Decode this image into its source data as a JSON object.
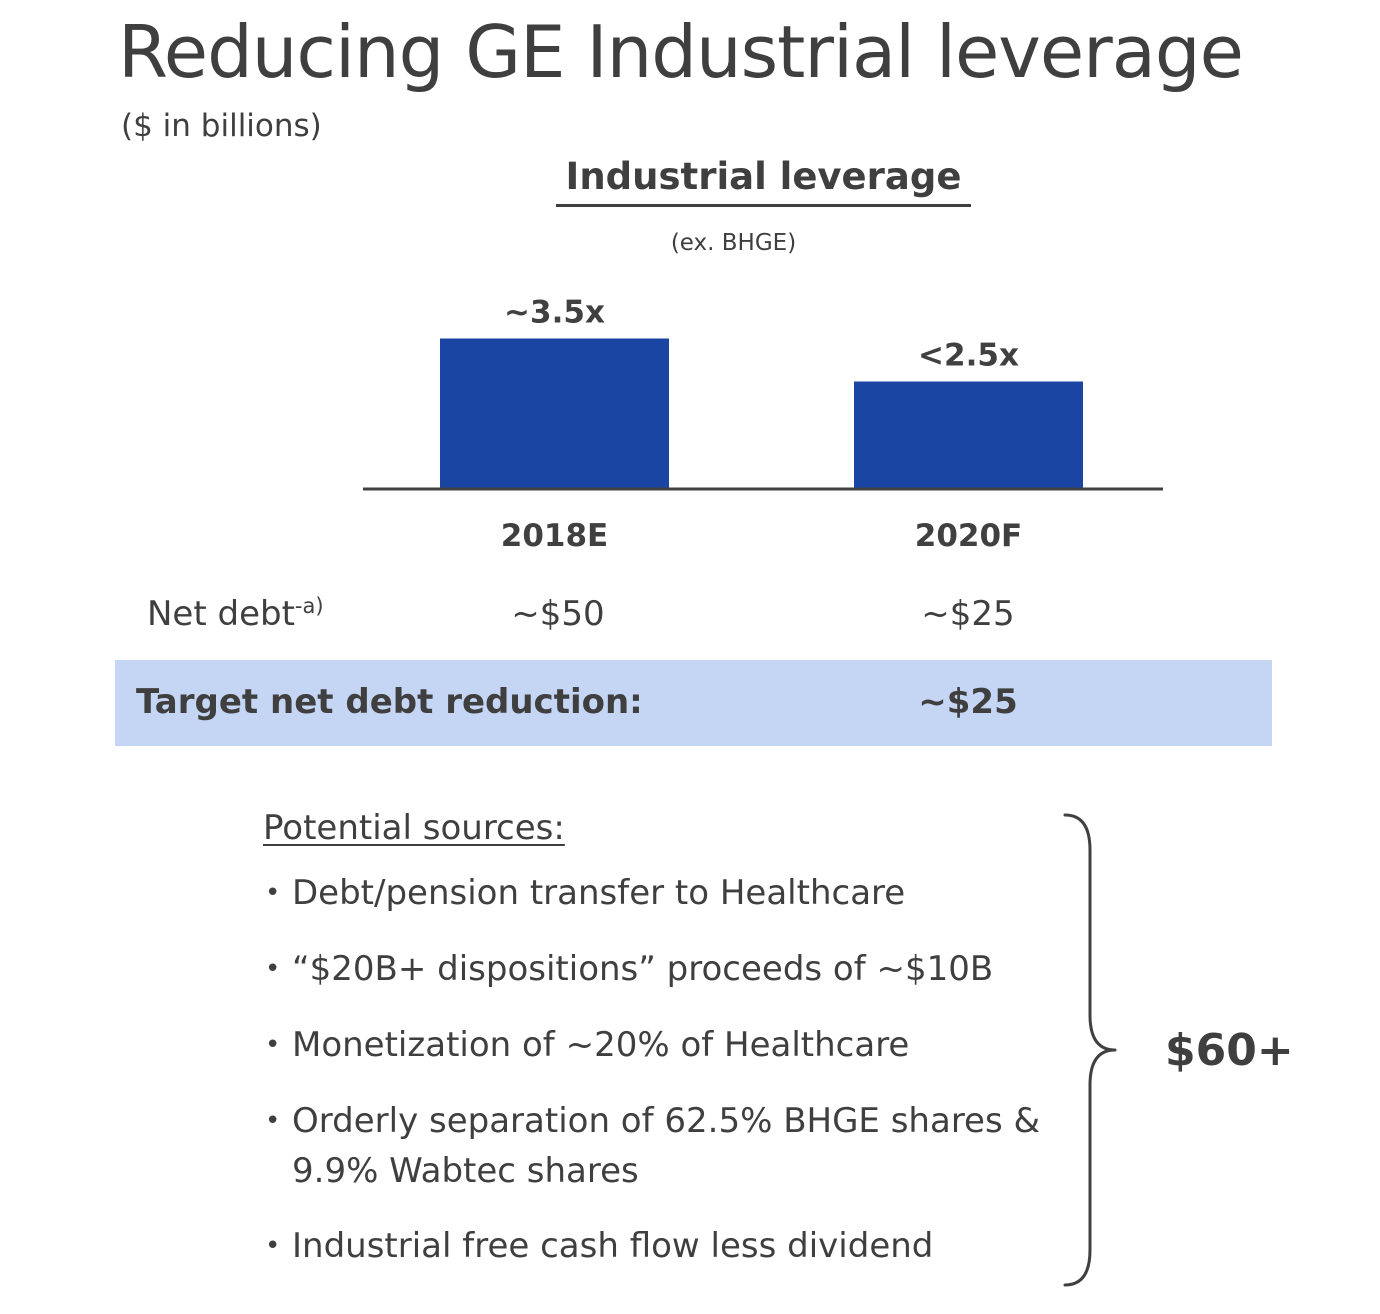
{
  "slide": {
    "title": "Reducing GE Industrial leverage",
    "subtitle": "($ in billions)"
  },
  "chart_data": {
    "type": "bar",
    "title": "Industrial leverage",
    "subtitle": "(ex. BHGE)",
    "categories": [
      "2018E",
      "2020F"
    ],
    "values": [
      3.5,
      2.5
    ],
    "data_labels": [
      "~3.5x",
      "<2.5x"
    ],
    "xlabel": "",
    "ylabel": "",
    "grid": false,
    "legend": "none",
    "bar_color": "#1a45a3",
    "axis_color": "#404040"
  },
  "net_debt": {
    "label": "Net debt",
    "footnote": "-a)",
    "values": [
      "~$50",
      "~$25"
    ]
  },
  "target": {
    "label": "Target net debt reduction:",
    "value": "~$25",
    "background": "#c5d5f4"
  },
  "sources": {
    "heading": "Potential sources:",
    "bullet_glyph": "•",
    "items": [
      "Debt/pension transfer to Healthcare",
      "“$20B+ dispositions” proceeds of ~$10B",
      "Monetization of ~20% of Healthcare",
      "Orderly separation of 62.5% BHGE shares & 9.9% Wabtec shares",
      "Industrial free cash flow less dividend"
    ],
    "total": "$60+"
  }
}
